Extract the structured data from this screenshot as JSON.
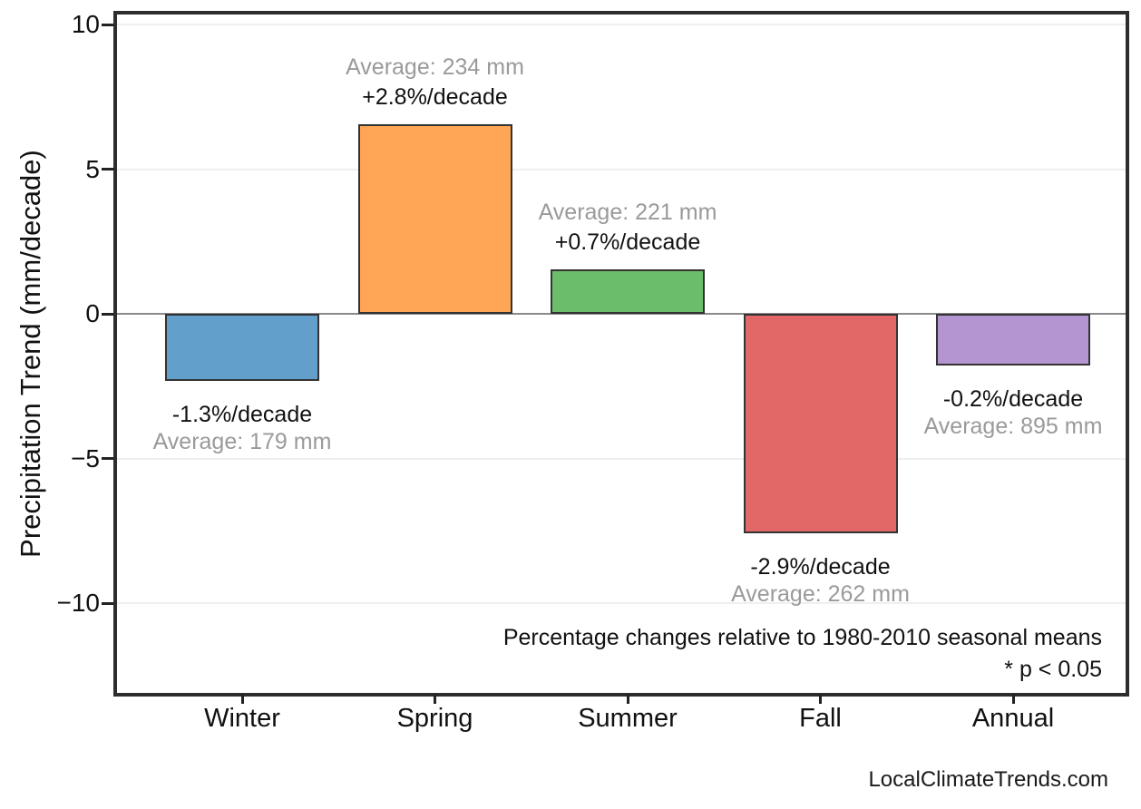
{
  "page": {
    "footer": "LocalClimateTrends.com"
  },
  "chart_data": {
    "type": "bar",
    "title": "",
    "xlabel": "",
    "ylabel": "Precipitation Trend (mm/decade)",
    "categories": [
      "Winter",
      "Spring",
      "Summer",
      "Fall",
      "Annual"
    ],
    "values": [
      -2.33,
      6.55,
      1.55,
      -7.6,
      -1.79
    ],
    "value_units": "mm/decade",
    "pct_labels": [
      "-1.3%/decade",
      "+2.8%/decade",
      "+0.7%/decade",
      "-2.9%/decade",
      "-0.2%/decade"
    ],
    "avg_labels": [
      "Average: 179 mm",
      "Average: 234 mm",
      "Average: 221 mm",
      "Average: 262 mm",
      "Average: 895 mm"
    ],
    "bar_colors": [
      "#62A0CB",
      "#FFA556",
      "#6BBD6B",
      "#E26868",
      "#B495D1"
    ],
    "bar_edge_color": "#333333",
    "yticks": [
      10,
      5,
      0,
      -5,
      -10
    ],
    "ytick_labels": [
      "10",
      "5",
      "0",
      "−5",
      "−10"
    ],
    "ylim": [
      -13.2,
      10.4
    ],
    "grid": "horizontal",
    "grid_color": "#efefef",
    "zero_line_color": "#8a8a8a",
    "annotations": [
      "Percentage changes relative to 1980-2010 seasonal means",
      "* p < 0.05"
    ],
    "legend": null
  }
}
